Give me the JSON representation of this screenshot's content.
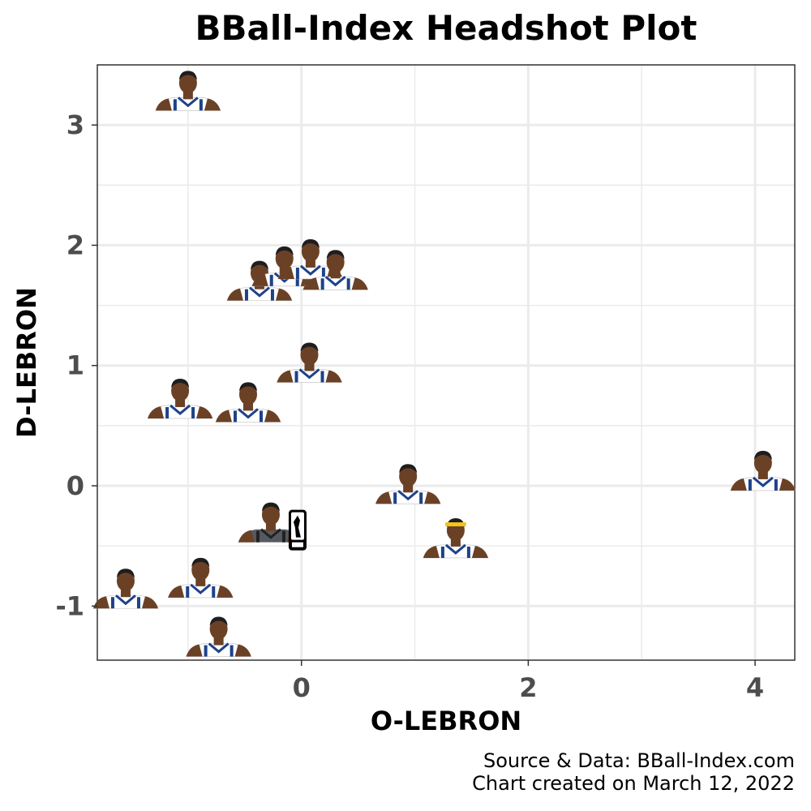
{
  "chart_data": {
    "type": "scatter",
    "title": "BBall-Index Headshot Plot",
    "xlabel": "O-LEBRON",
    "ylabel": "D-LEBRON",
    "xlim": [
      -1.8,
      4.35
    ],
    "ylim": [
      -1.45,
      3.5
    ],
    "x_ticks": [
      0,
      2,
      4
    ],
    "y_ticks": [
      3,
      2,
      1,
      0,
      -1
    ],
    "x_tick_labels": [
      "0",
      "2",
      "4"
    ],
    "y_tick_labels": [
      "3",
      "2",
      "1",
      "0",
      "-1"
    ],
    "grid": true,
    "points": [
      {
        "x": -1.0,
        "y": 3.12,
        "marker": "player-headshot",
        "accent": ""
      },
      {
        "x": -0.37,
        "y": 1.54,
        "marker": "player-headshot",
        "accent": ""
      },
      {
        "x": -0.15,
        "y": 1.66,
        "marker": "player-headshot",
        "accent": ""
      },
      {
        "x": 0.08,
        "y": 1.72,
        "marker": "player-headshot",
        "accent": ""
      },
      {
        "x": 0.3,
        "y": 1.63,
        "marker": "player-headshot",
        "accent": ""
      },
      {
        "x": 0.07,
        "y": 0.86,
        "marker": "player-headshot",
        "accent": ""
      },
      {
        "x": -1.07,
        "y": 0.56,
        "marker": "player-headshot",
        "accent": ""
      },
      {
        "x": -0.47,
        "y": 0.53,
        "marker": "player-headshot",
        "accent": ""
      },
      {
        "x": 0.94,
        "y": -0.15,
        "marker": "player-headshot",
        "accent": ""
      },
      {
        "x": 4.07,
        "y": -0.04,
        "marker": "player-headshot",
        "accent": ""
      },
      {
        "x": -0.27,
        "y": -0.47,
        "marker": "player-headshot-nba-logo",
        "accent": ""
      },
      {
        "x": 1.36,
        "y": -0.6,
        "marker": "player-headshot",
        "accent": "#f2c318"
      },
      {
        "x": -0.89,
        "y": -0.93,
        "marker": "player-headshot",
        "accent": ""
      },
      {
        "x": -1.55,
        "y": -1.02,
        "marker": "player-headshot",
        "accent": ""
      },
      {
        "x": -0.73,
        "y": -1.42,
        "marker": "player-headshot",
        "accent": ""
      }
    ]
  },
  "caption": {
    "source": "Source & Data: BBall-Index.com",
    "created": "Chart created on March 12, 2022"
  },
  "colors": {
    "jersey": "#ffffff",
    "jersey_trim": "#1d428a",
    "skin": "#6b4126",
    "hair": "#1e1e1e",
    "axis_text": "#4d4d4d",
    "grid": "#ebebeb",
    "panel_border": "#333333"
  }
}
